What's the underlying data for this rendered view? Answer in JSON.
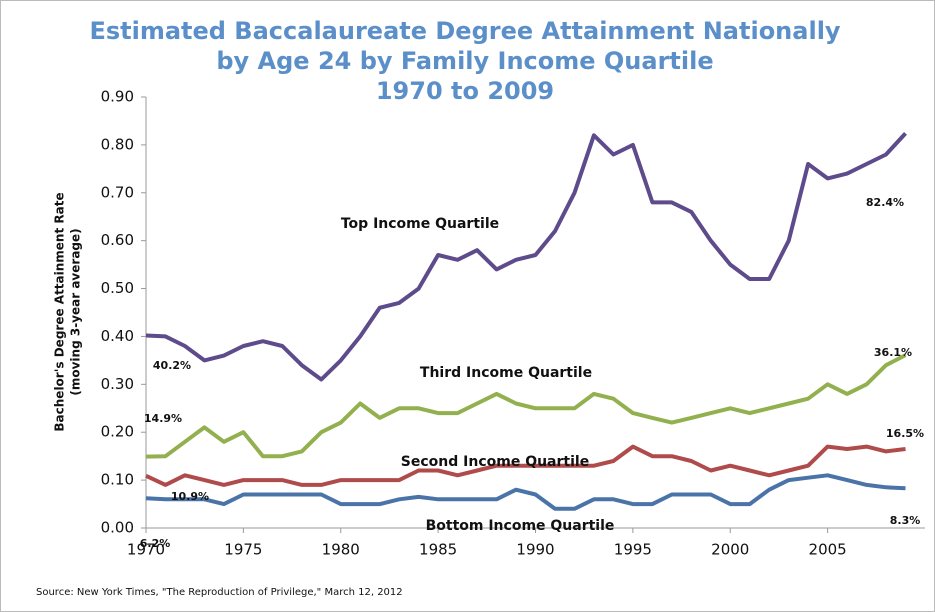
{
  "chart_data": {
    "type": "line",
    "title": [
      "Estimated Baccalaureate Degree Attainment Nationally",
      "by Age 24 by Family Income Quartile",
      "1970 to 2009"
    ],
    "y_label": [
      "Bachelor's Degree Attainment Rate",
      "(moving 3-year average)"
    ],
    "source": "Source: New York Times, \"The Reproduction of Privilege,\" March 12, 2012",
    "x": [
      1970,
      1971,
      1972,
      1973,
      1974,
      1975,
      1976,
      1977,
      1978,
      1979,
      1980,
      1981,
      1982,
      1983,
      1984,
      1985,
      1986,
      1987,
      1988,
      1989,
      1990,
      1991,
      1992,
      1993,
      1994,
      1995,
      1996,
      1997,
      1998,
      1999,
      2000,
      2001,
      2002,
      2003,
      2004,
      2005,
      2006,
      2007,
      2008,
      2009
    ],
    "xlim": [
      1970,
      2010
    ],
    "xticks": [
      1970,
      1975,
      1980,
      1985,
      1990,
      1995,
      2000,
      2005
    ],
    "ylim": [
      0,
      0.9
    ],
    "yticks": [
      {
        "value": 0,
        "label": "0.00"
      },
      {
        "value": 0.1,
        "label": "0.10"
      },
      {
        "value": 0.2,
        "label": "0.20"
      },
      {
        "value": 0.3,
        "label": "0.30"
      },
      {
        "value": 0.4,
        "label": "0.40"
      },
      {
        "value": 0.5,
        "label": "0.50"
      },
      {
        "value": 0.6,
        "label": "0.60"
      },
      {
        "value": 0.7,
        "label": "0.70"
      },
      {
        "value": 0.8,
        "label": "0.80"
      },
      {
        "value": 0.9,
        "label": "0.90"
      }
    ],
    "series": [
      {
        "name": "Top Income Quartile",
        "color": "#5e4b8b",
        "values": [
          0.402,
          0.4,
          0.38,
          0.35,
          0.36,
          0.38,
          0.39,
          0.38,
          0.34,
          0.31,
          0.35,
          0.4,
          0.46,
          0.47,
          0.5,
          0.57,
          0.56,
          0.58,
          0.54,
          0.56,
          0.57,
          0.62,
          0.7,
          0.82,
          0.78,
          0.8,
          0.68,
          0.68,
          0.66,
          0.6,
          0.55,
          0.52,
          0.52,
          0.6,
          0.76,
          0.73,
          0.74,
          0.76,
          0.78,
          0.824
        ]
      },
      {
        "name": "Third Income Quartile",
        "color": "#93b04f",
        "values": [
          0.149,
          0.15,
          0.18,
          0.21,
          0.18,
          0.2,
          0.15,
          0.15,
          0.16,
          0.2,
          0.22,
          0.26,
          0.23,
          0.25,
          0.25,
          0.24,
          0.24,
          0.26,
          0.28,
          0.26,
          0.25,
          0.25,
          0.25,
          0.28,
          0.27,
          0.24,
          0.23,
          0.22,
          0.23,
          0.24,
          0.25,
          0.24,
          0.25,
          0.26,
          0.27,
          0.3,
          0.28,
          0.3,
          0.34,
          0.361
        ]
      },
      {
        "name": "Second Income Quartile",
        "color": "#b04b4b",
        "values": [
          0.109,
          0.09,
          0.11,
          0.1,
          0.09,
          0.1,
          0.1,
          0.1,
          0.09,
          0.09,
          0.1,
          0.1,
          0.1,
          0.1,
          0.12,
          0.12,
          0.11,
          0.12,
          0.13,
          0.13,
          0.13,
          0.13,
          0.13,
          0.13,
          0.14,
          0.17,
          0.15,
          0.15,
          0.14,
          0.12,
          0.13,
          0.12,
          0.11,
          0.12,
          0.13,
          0.17,
          0.165,
          0.17,
          0.16,
          0.165
        ]
      },
      {
        "name": "Bottom Income Quartile",
        "color": "#4a74a8",
        "values": [
          0.062,
          0.06,
          0.06,
          0.06,
          0.05,
          0.07,
          0.07,
          0.07,
          0.07,
          0.07,
          0.05,
          0.05,
          0.05,
          0.06,
          0.065,
          0.06,
          0.06,
          0.06,
          0.06,
          0.08,
          0.07,
          0.04,
          0.04,
          0.06,
          0.06,
          0.05,
          0.05,
          0.07,
          0.07,
          0.07,
          0.05,
          0.05,
          0.08,
          0.1,
          0.105,
          0.11,
          0.1,
          0.09,
          0.085,
          0.083
        ]
      }
    ],
    "annotations": [
      "40.2%",
      "14.9%",
      "10.9%",
      "6.2%",
      "82.4%",
      "36.1%",
      "16.5%",
      "8.3%"
    ]
  }
}
